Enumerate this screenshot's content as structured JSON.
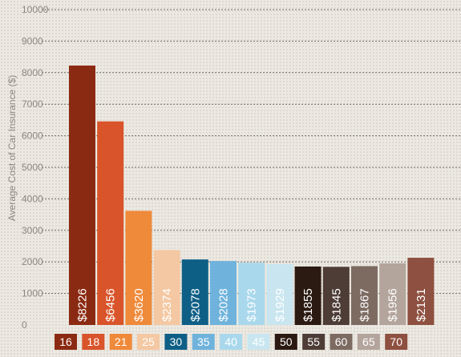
{
  "chart_data": {
    "type": "bar",
    "ylabel": "Average Cost of Car Insurance ($)",
    "ylim": [
      0,
      10000
    ],
    "yticks": [
      0,
      1000,
      2000,
      3000,
      4000,
      5000,
      6000,
      7000,
      8000,
      9000,
      10000
    ],
    "grid": true,
    "legend_position": "bottom",
    "categories": [
      "16",
      "18",
      "21",
      "25",
      "30",
      "35",
      "40",
      "45",
      "50",
      "55",
      "60",
      "65",
      "70"
    ],
    "values": [
      8226,
      6456,
      3620,
      2374,
      2078,
      2028,
      1973,
      1929,
      1855,
      1845,
      1867,
      1956,
      2131
    ],
    "value_labels": [
      "$8226",
      "$6456",
      "$3620",
      "$2374",
      "$2078",
      "$2028",
      "$1973",
      "$1929",
      "$1855",
      "$1845",
      "$1867",
      "$1956",
      "$2131"
    ],
    "colors": [
      "#8b2a12",
      "#d9542a",
      "#ef8a3a",
      "#f4c8a2",
      "#0e5f86",
      "#6fb3dc",
      "#a9d8ec",
      "#c9e6f0",
      "#2b1a12",
      "#4d3d36",
      "#7d6b62",
      "#b3a49c",
      "#8e5040"
    ]
  }
}
